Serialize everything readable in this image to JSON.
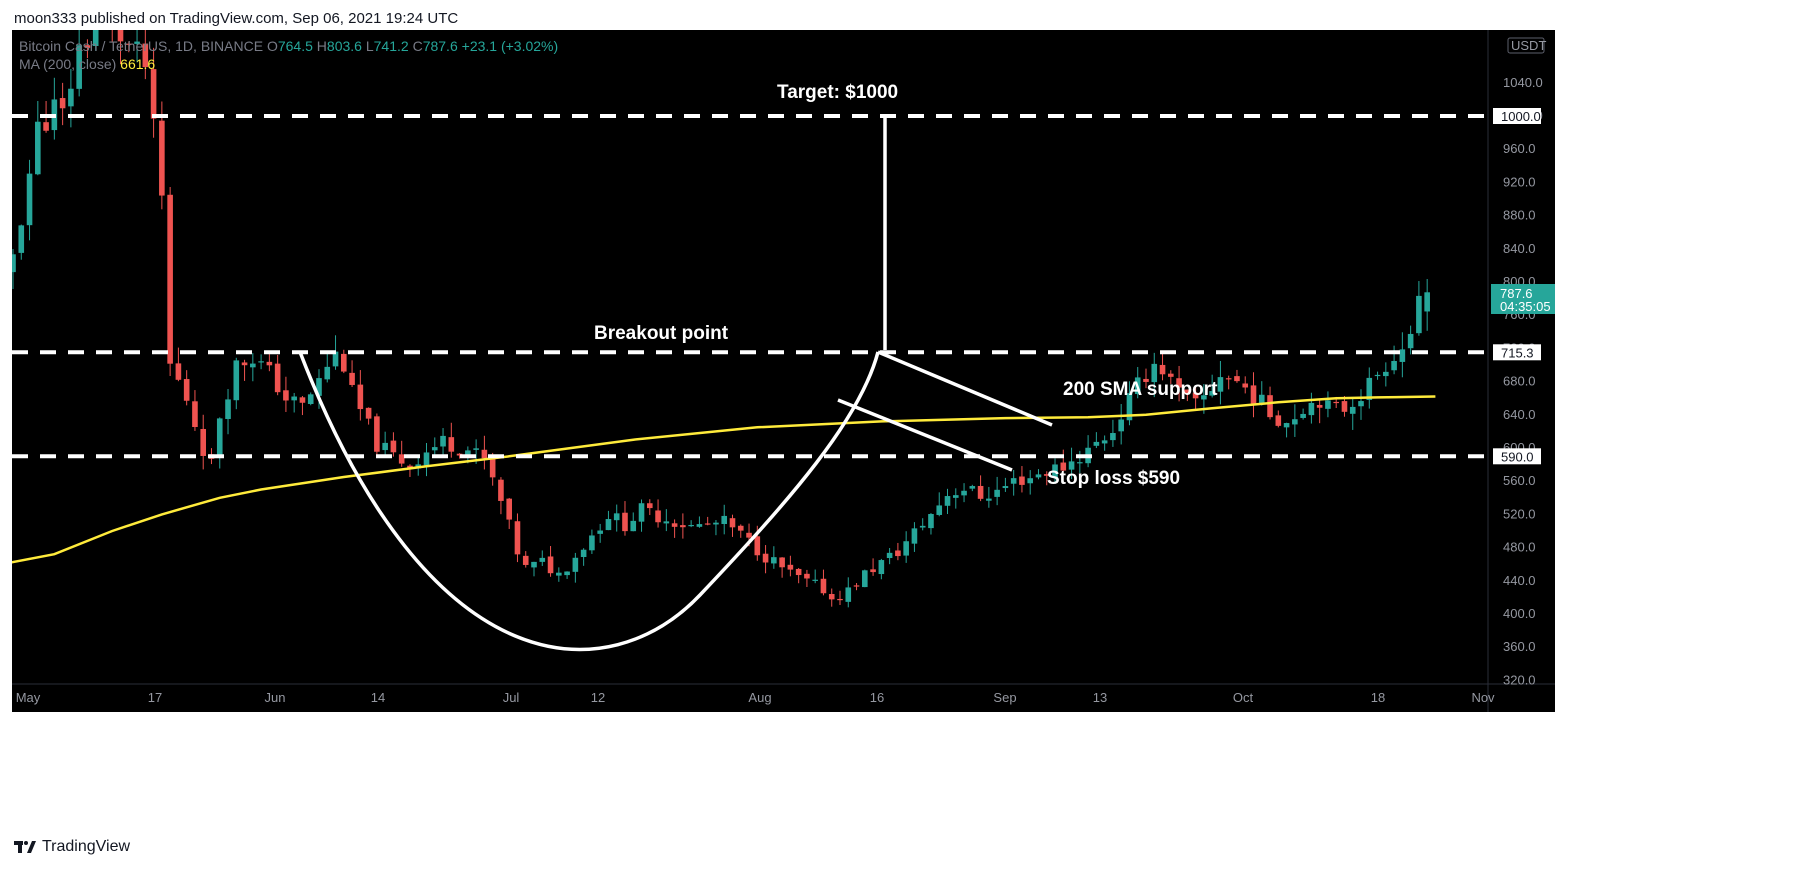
{
  "header": {
    "published": "moon333 published on TradingView.com, Sep 06, 2021 19:24 UTC"
  },
  "footer": {
    "brand": "TradingView"
  },
  "legend": {
    "symbol": "Bitcoin Cash / TetherUS, 1D, BINANCE",
    "open_label": "O",
    "open": "764.5",
    "high_label": "H",
    "high": "803.6",
    "low_label": "L",
    "low": "741.2",
    "close_label": "C",
    "close": "787.6",
    "change": "+23.1 (+3.02%)",
    "ma_label": "MA (200, close)",
    "ma_value": "661.6"
  },
  "price_axis": {
    "currency": "USDT",
    "last_price": "787.6",
    "countdown": "04:35:05",
    "level_1000": "1000.0",
    "level_715": "715.3",
    "level_590": "590.0"
  },
  "colors": {
    "background": "#000000",
    "up": "#26a69a",
    "down": "#ef5350",
    "ma": "#ffeb3b",
    "annotation": "#ffffff",
    "axis_text": "#9598a1"
  },
  "annotations": {
    "target": "Target: $1000",
    "breakout": "Breakout point",
    "sma": "200 SMA support",
    "stop": "Stop loss $590"
  },
  "chart_data": {
    "type": "candlestick",
    "title": "Bitcoin Cash / TetherUS, 1D, BINANCE",
    "xlabel": "",
    "ylabel": "USDT",
    "ylim": [
      320,
      1080
    ],
    "x_ticks": [
      "May",
      "17",
      "Jun",
      "14",
      "Jul",
      "12",
      "Aug",
      "16",
      "Sep",
      "13",
      "Oct",
      "18",
      "Nov"
    ],
    "y_ticks": [
      1040,
      1000,
      960,
      920,
      880,
      840,
      800,
      760,
      720,
      680,
      640,
      600,
      560,
      520,
      480,
      440,
      400,
      360,
      320
    ],
    "levels": [
      1000,
      715.3,
      590
    ],
    "ma_period": 200,
    "ma_last": 661.6,
    "ohlc_summary": {
      "open": 764.5,
      "high": 803.6,
      "low": 741.2,
      "close": 787.6
    },
    "series": [
      {
        "name": "MA (200, close)",
        "points": [
          [
            -4,
            455
          ],
          [
            5,
            472
          ],
          [
            12,
            500
          ],
          [
            18,
            520
          ],
          [
            25,
            540
          ],
          [
            30,
            550
          ],
          [
            40,
            565
          ],
          [
            50,
            578
          ],
          [
            60,
            590
          ],
          [
            75,
            610
          ],
          [
            90,
            625
          ],
          [
            105,
            632
          ],
          [
            120,
            636
          ],
          [
            130,
            637
          ],
          [
            137,
            640
          ],
          [
            145,
            648
          ],
          [
            153,
            655
          ],
          [
            160,
            660
          ],
          [
            165,
            661
          ],
          [
            172,
            662
          ]
        ]
      }
    ]
  }
}
